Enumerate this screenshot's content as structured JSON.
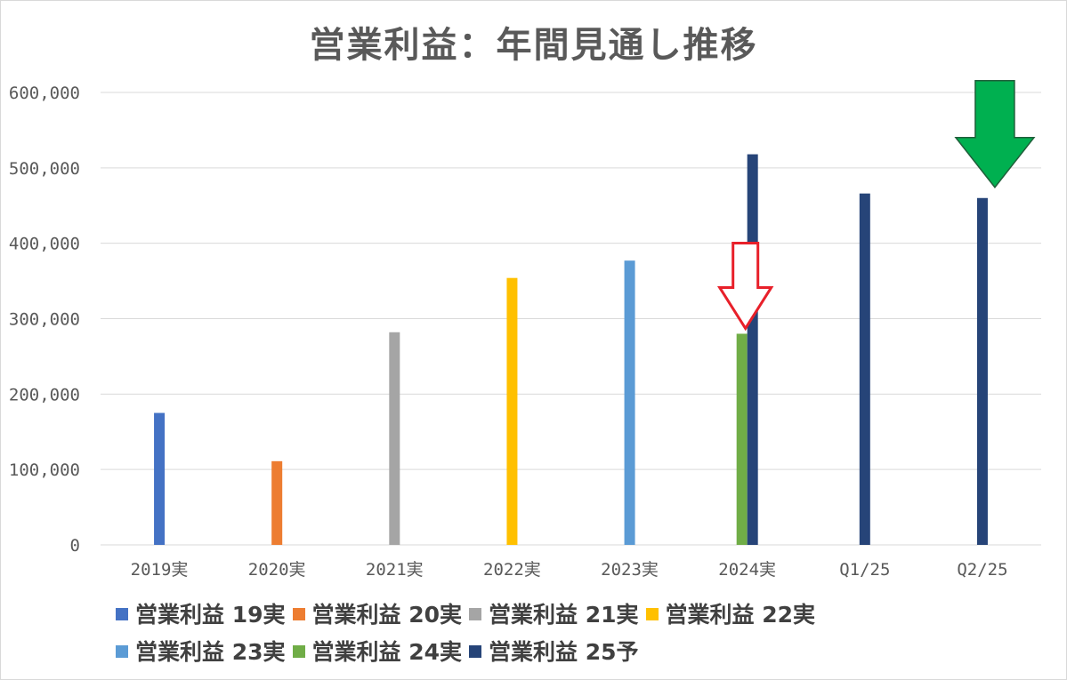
{
  "chart_data": {
    "type": "bar",
    "title": "営業利益：年間見通し推移",
    "categories": [
      "2019実",
      "2020実",
      "2021実",
      "2022実",
      "2023実",
      "2024実",
      "Q1/25",
      "Q2/25"
    ],
    "y_ticks": [
      "0",
      "100,000",
      "200,000",
      "300,000",
      "400,000",
      "500,000",
      "600,000"
    ],
    "ylim": [
      0,
      600000
    ],
    "grid": true,
    "legend_position": "bottom",
    "series": [
      {
        "name": "営業利益 19実",
        "color": "#4472C4",
        "values": [
          175000,
          null,
          null,
          null,
          null,
          null,
          null,
          null
        ]
      },
      {
        "name": "営業利益 20実",
        "color": "#ED7D31",
        "values": [
          null,
          111000,
          null,
          null,
          null,
          null,
          null,
          null
        ]
      },
      {
        "name": "営業利益 21実",
        "color": "#A5A5A5",
        "values": [
          null,
          null,
          282000,
          null,
          null,
          null,
          null,
          null
        ]
      },
      {
        "name": "営業利益 22実",
        "color": "#FFC000",
        "values": [
          null,
          null,
          null,
          354000,
          null,
          null,
          null,
          null
        ]
      },
      {
        "name": "営業利益 23実",
        "color": "#5B9BD5",
        "values": [
          null,
          null,
          null,
          null,
          377000,
          null,
          null,
          null
        ]
      },
      {
        "name": "営業利益 24実",
        "color": "#70AD47",
        "values": [
          null,
          null,
          null,
          null,
          null,
          280000,
          null,
          null
        ]
      },
      {
        "name": "営業利益 25予",
        "color": "#264478",
        "values": [
          null,
          null,
          null,
          null,
          null,
          518000,
          466000,
          460000
        ]
      }
    ],
    "annotations": [
      {
        "type": "arrow-down",
        "style": "outline",
        "color": "#E8202A",
        "category": "2024実"
      },
      {
        "type": "arrow-down",
        "style": "filled",
        "color": "#00B050",
        "category": "Q2/25"
      }
    ]
  },
  "legend_rows": [
    [
      0,
      1,
      2,
      3
    ],
    [
      4,
      5,
      6
    ]
  ]
}
